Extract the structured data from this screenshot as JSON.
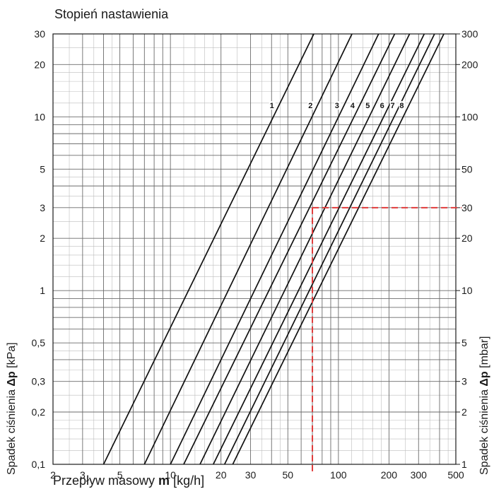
{
  "chart_data": {
    "type": "line",
    "title": "Stopień nastawienia",
    "xlabel": {
      "prefix": "Przepływ masowy ",
      "symbol": "m",
      "unit": " [kg/h]"
    },
    "ylabel_left": {
      "prefix": "Spadek ciśnienia ",
      "symbol": "Δp",
      "unit": " [kPa]"
    },
    "ylabel_right": {
      "prefix": "Spadek ciśnienia ",
      "symbol": "Δp",
      "unit": " [mbar]"
    },
    "x_scale": "log",
    "y_scale": "log",
    "xlim": [
      2,
      500
    ],
    "ylim": [
      0.1,
      30
    ],
    "x_ticks": [
      2,
      3,
      5,
      10,
      20,
      30,
      50,
      100,
      200,
      300,
      500
    ],
    "x_tick_labels": [
      "2",
      "3",
      "5",
      "10",
      "20",
      "30",
      "50",
      "100",
      "200",
      "300",
      "500"
    ],
    "y_ticks_left": [
      0.1,
      0.2,
      0.3,
      0.5,
      1,
      2,
      3,
      5,
      10,
      20,
      30
    ],
    "y_tick_labels_left": [
      "0,1",
      "0,2",
      "0,3",
      "0,5",
      "1",
      "2",
      "3",
      "5",
      "10",
      "20",
      "30"
    ],
    "y_tick_labels_right": [
      "1",
      "2",
      "3",
      "5",
      "10",
      "20",
      "30",
      "50",
      "100",
      "200",
      "300"
    ],
    "grid": true,
    "series": [
      {
        "name": "1",
        "x": [
          4.0,
          43.0
        ],
        "y": [
          0.1,
          11.0
        ]
      },
      {
        "name": "2",
        "x": [
          7.0,
          73.0
        ],
        "y": [
          0.1,
          11.0
        ]
      },
      {
        "name": "3",
        "x": [
          10.0,
          105.0
        ],
        "y": [
          0.1,
          11.0
        ]
      },
      {
        "name": "4",
        "x": [
          12.0,
          130.0
        ],
        "y": [
          0.1,
          11.0
        ]
      },
      {
        "name": "5",
        "x": [
          15.0,
          160.0
        ],
        "y": [
          0.1,
          11.0
        ]
      },
      {
        "name": "6",
        "x": [
          18.0,
          195.0
        ],
        "y": [
          0.1,
          11.0
        ]
      },
      {
        "name": "7",
        "x": [
          21.0,
          225.0
        ],
        "y": [
          0.1,
          11.0
        ]
      },
      {
        "name": "8",
        "x": [
          23.5,
          255.0
        ],
        "y": [
          0.1,
          11.0
        ]
      }
    ],
    "annotation": {
      "x": 70,
      "y": 3,
      "color": "#e03a3a",
      "style": "dashed"
    }
  }
}
